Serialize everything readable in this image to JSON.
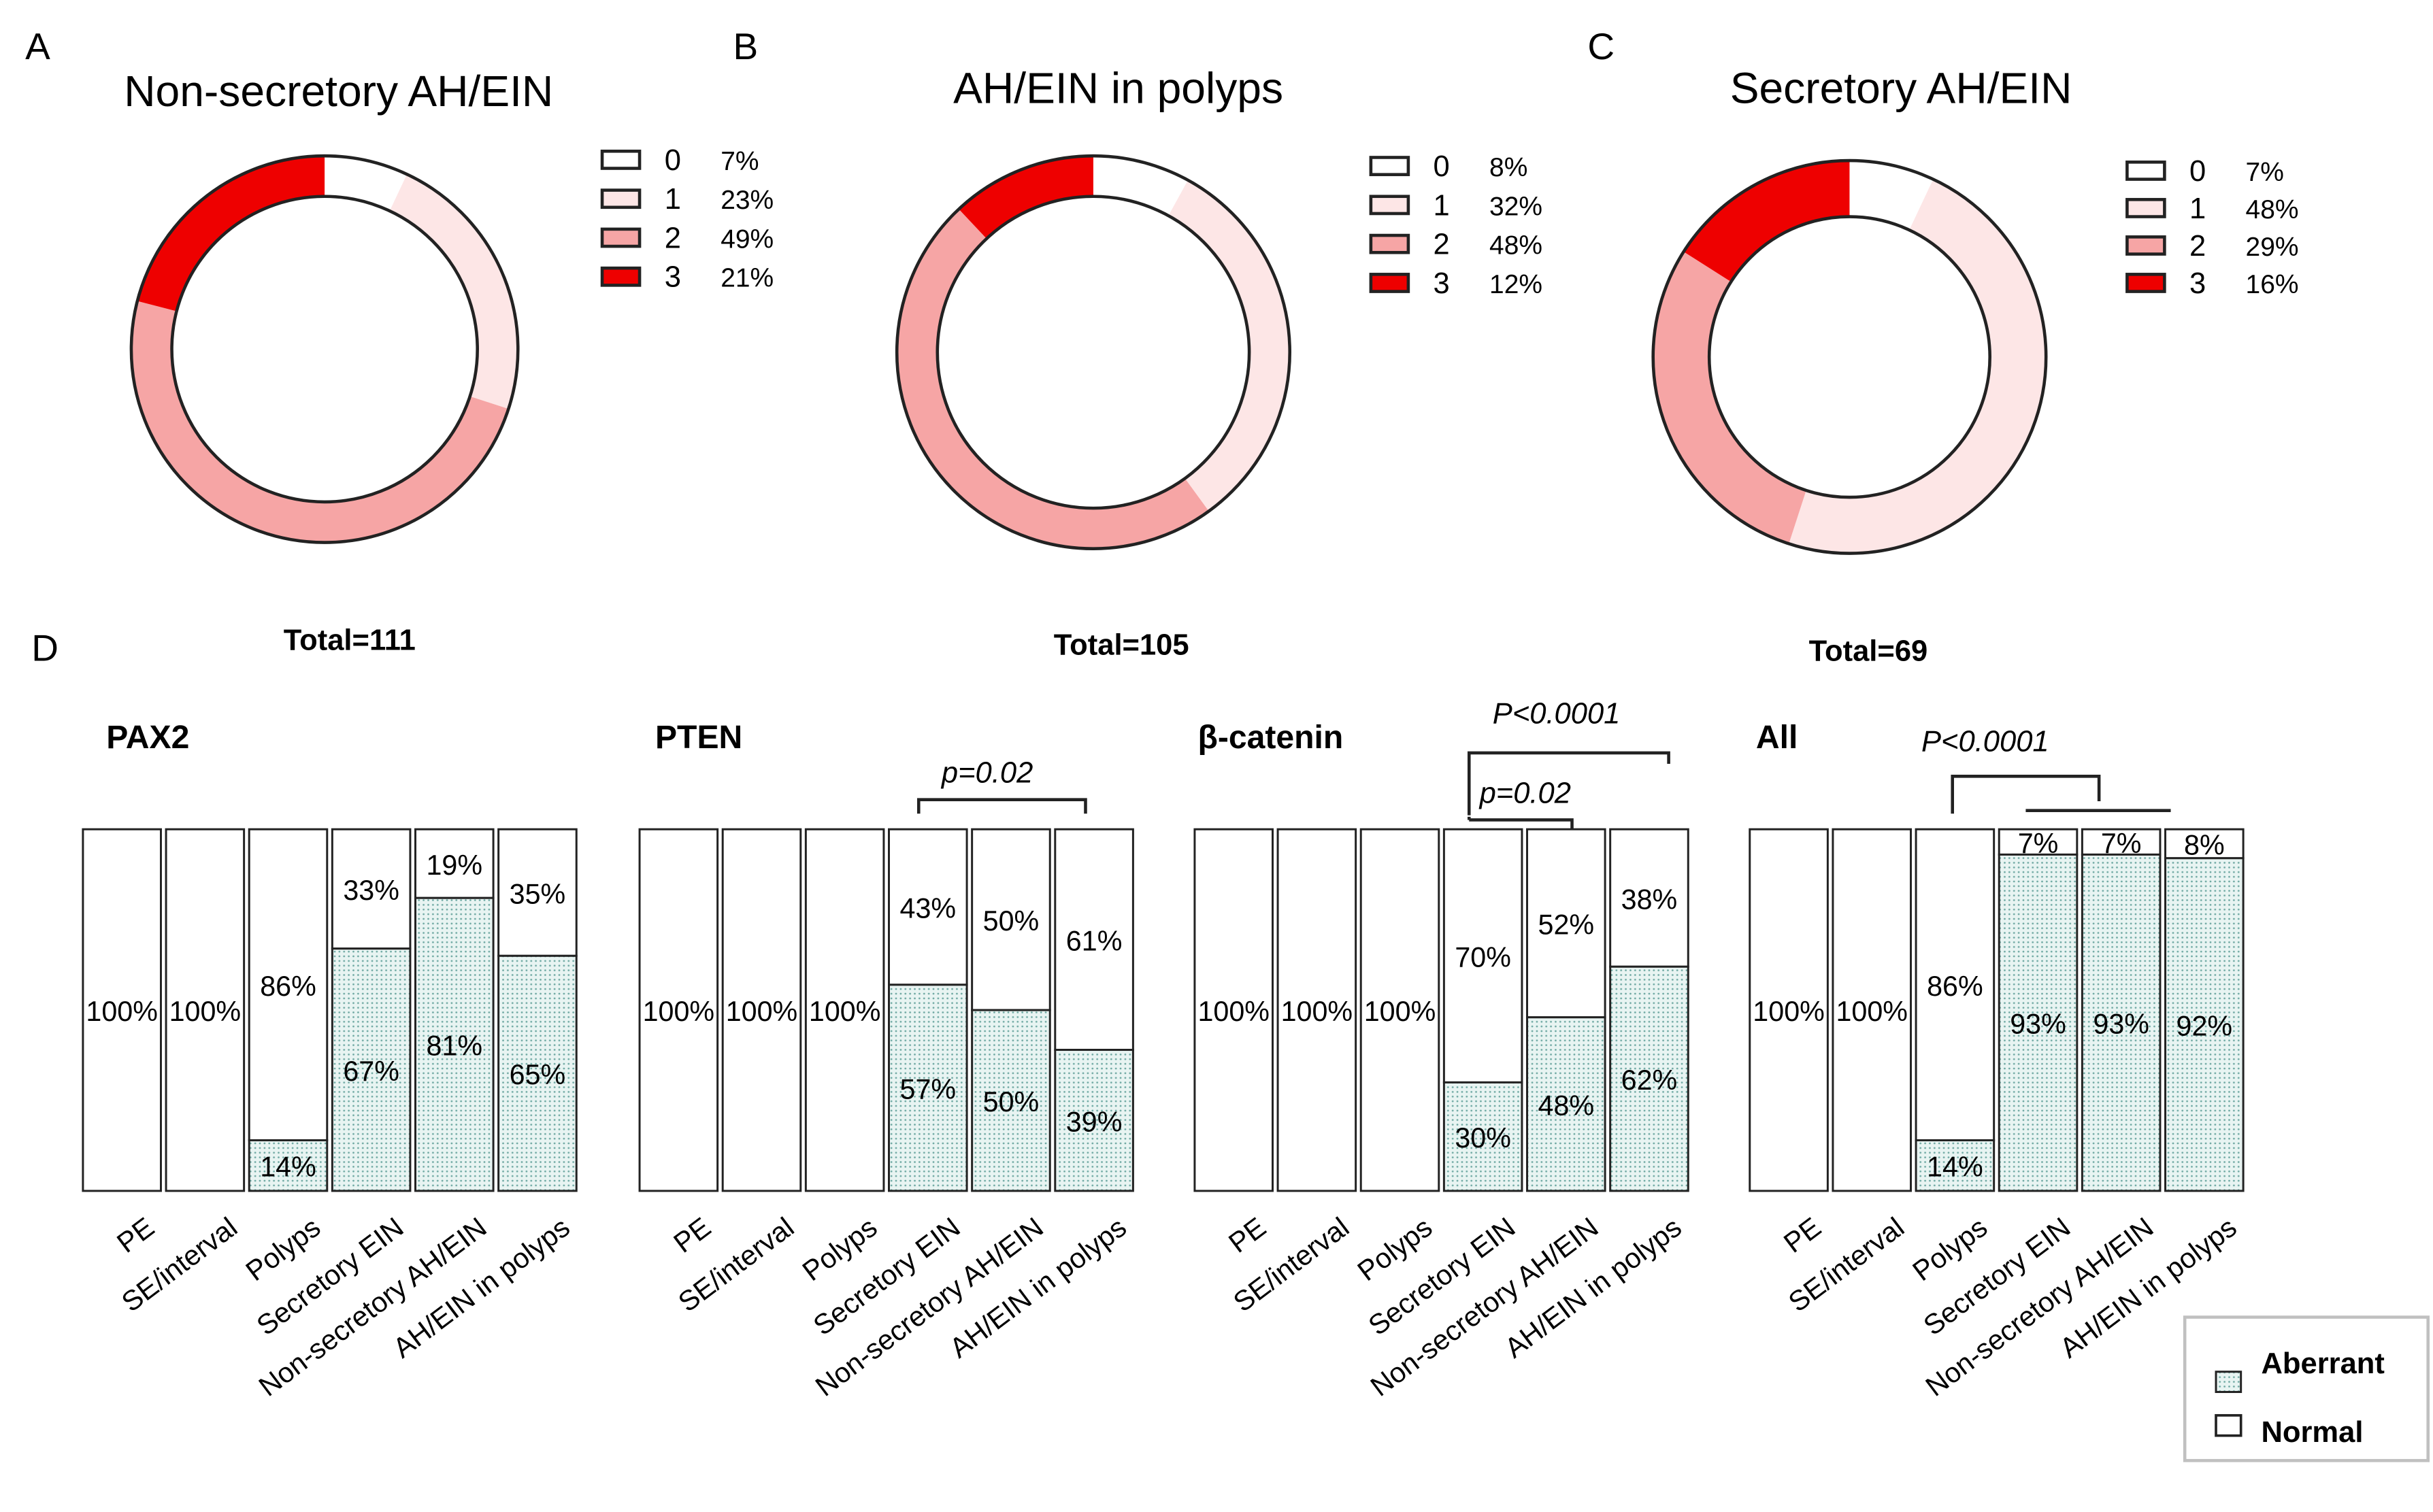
{
  "panel_letters": {
    "a": "A",
    "b": "B",
    "c": "C",
    "d": "D"
  },
  "colors": {
    "level_0": "#ffffff",
    "level_1": "#fde6e6",
    "level_2": "#f6a5a5",
    "level_3": "#ee0000",
    "aberrant_fill": "#e8f4f2",
    "aberrant_dot": "#6fa9a3",
    "outline": "#222222"
  },
  "legend": {
    "aberrant": "Aberrant",
    "normal": "Normal"
  },
  "chart_data": [
    {
      "type": "pie",
      "title": "Non-secretory AH/EIN",
      "total_label": "Total=111",
      "labels": [
        "0",
        "1",
        "2",
        "3"
      ],
      "values": [
        7,
        23,
        49,
        21
      ],
      "value_labels": [
        "7%",
        "23%",
        "49%",
        "21%"
      ]
    },
    {
      "type": "pie",
      "title": "AH/EIN in polyps",
      "total_label": "Total=105",
      "labels": [
        "0",
        "1",
        "2",
        "3"
      ],
      "values": [
        8,
        32,
        48,
        12
      ],
      "value_labels": [
        "8%",
        "32%",
        "48%",
        "12%"
      ]
    },
    {
      "type": "pie",
      "title": "Secretory AH/EIN",
      "total_label": "Total=69",
      "labels": [
        "0",
        "1",
        "2",
        "3"
      ],
      "values": [
        7,
        48,
        29,
        16
      ],
      "value_labels": [
        "7%",
        "48%",
        "29%",
        "16%"
      ]
    },
    {
      "type": "bar",
      "stacked": true,
      "title": "PAX2",
      "categories": [
        "PE",
        "SE/interval",
        "Polyps",
        "Secretory EIN",
        "Non-secretory AH/EIN",
        "AH/EIN in polyps"
      ],
      "series": [
        {
          "name": "Aberrant",
          "values": [
            0,
            0,
            14,
            67,
            81,
            65
          ]
        },
        {
          "name": "Normal",
          "values": [
            100,
            100,
            86,
            33,
            19,
            35
          ]
        }
      ],
      "ylim": [
        0,
        100
      ],
      "annotations": []
    },
    {
      "type": "bar",
      "stacked": true,
      "title": "PTEN",
      "categories": [
        "PE",
        "SE/interval",
        "Polyps",
        "Secretory EIN",
        "Non-secretory AH/EIN",
        "AH/EIN in polyps"
      ],
      "series": [
        {
          "name": "Aberrant",
          "values": [
            0,
            0,
            0,
            57,
            50,
            39
          ]
        },
        {
          "name": "Normal",
          "values": [
            100,
            100,
            100,
            43,
            50,
            61
          ]
        }
      ],
      "ylim": [
        0,
        100
      ],
      "annotations": [
        {
          "text": "p=0.02",
          "from": "Secretory EIN",
          "to": "AH/EIN in polyps"
        }
      ]
    },
    {
      "type": "bar",
      "stacked": true,
      "title": "β-catenin",
      "categories": [
        "PE",
        "SE/interval",
        "Polyps",
        "Secretory EIN",
        "Non-secretory AH/EIN",
        "AH/EIN in polyps"
      ],
      "series": [
        {
          "name": "Aberrant",
          "values": [
            0,
            0,
            0,
            30,
            48,
            62
          ]
        },
        {
          "name": "Normal",
          "values": [
            100,
            100,
            100,
            70,
            52,
            38
          ]
        }
      ],
      "ylim": [
        0,
        100
      ],
      "annotations": [
        {
          "text": "P<0.0001",
          "from": "Secretory EIN",
          "to": "AH/EIN in polyps"
        },
        {
          "text": "p=0.02",
          "from": "Secretory EIN",
          "to": "Non-secretory AH/EIN"
        }
      ]
    },
    {
      "type": "bar",
      "stacked": true,
      "title": "All",
      "categories": [
        "PE",
        "SE/interval",
        "Polyps",
        "Secretory EIN",
        "Non-secretory AH/EIN",
        "AH/EIN in polyps"
      ],
      "series": [
        {
          "name": "Aberrant",
          "values": [
            0,
            0,
            14,
            93,
            93,
            92
          ]
        },
        {
          "name": "Normal",
          "values": [
            100,
            100,
            86,
            7,
            7,
            8
          ]
        }
      ],
      "ylim": [
        0,
        100
      ],
      "annotations": [
        {
          "text": "P<0.0001",
          "from": "Polyps",
          "to": "Secretory EIN, Non-secretory AH/EIN, AH/EIN in polyps"
        }
      ]
    }
  ]
}
